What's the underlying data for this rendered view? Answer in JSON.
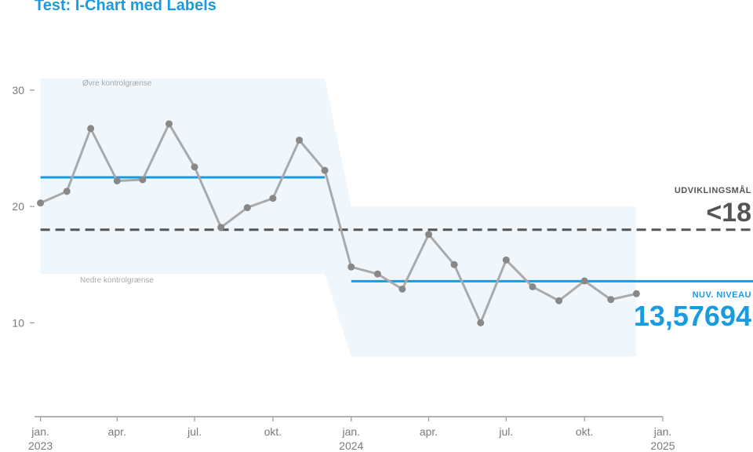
{
  "title": "Test: I-Chart med Labels",
  "colors": {
    "accent": "#1a9be0",
    "line": "#aaaaaa",
    "point": "#888888",
    "band": "#f0f7fc",
    "goal": "#555555",
    "axis": "#999999"
  },
  "annotations": {
    "upper_limit_label": "Øvre kontrolgrænse",
    "lower_limit_label": "Nedre kontrolgrænse",
    "goal_label": "UDVIKLINGSMÅL",
    "goal_value": "<18",
    "level_label": "NUV. NIVEAU",
    "level_value": "13,57694"
  },
  "chart_data": {
    "type": "line",
    "title": "Test: I-Chart med Labels",
    "xlabel": "",
    "ylabel": "",
    "ylim": [
      2,
      31
    ],
    "xlim": [
      "2022-12-25",
      "2025-01-01"
    ],
    "grid": false,
    "x_ticks": [
      {
        "date": "2023-01-01",
        "label": "jan.",
        "year": "2023"
      },
      {
        "date": "2023-04-01",
        "label": "apr.",
        "year": ""
      },
      {
        "date": "2023-07-01",
        "label": "jul.",
        "year": ""
      },
      {
        "date": "2023-10-01",
        "label": "okt.",
        "year": ""
      },
      {
        "date": "2024-01-01",
        "label": "jan.",
        "year": "2024"
      },
      {
        "date": "2024-04-01",
        "label": "apr.",
        "year": ""
      },
      {
        "date": "2024-07-01",
        "label": "jul.",
        "year": ""
      },
      {
        "date": "2024-10-01",
        "label": "okt.",
        "year": ""
      },
      {
        "date": "2025-01-01",
        "label": "jan.",
        "year": "2025"
      }
    ],
    "y_ticks": [
      10,
      20,
      30
    ],
    "series": [
      {
        "x": [
          "2023-01-01",
          "2023-02-01",
          "2023-03-01",
          "2023-04-01",
          "2023-05-01",
          "2023-06-01",
          "2023-07-01",
          "2023-08-01",
          "2023-09-01",
          "2023-10-01",
          "2023-11-01",
          "2023-12-01",
          "2024-01-01",
          "2024-02-01",
          "2024-03-01",
          "2024-04-01",
          "2024-05-01",
          "2024-06-01",
          "2024-07-01",
          "2024-08-01",
          "2024-09-01",
          "2024-10-01",
          "2024-11-01",
          "2024-12-01"
        ],
        "y": [
          20.3,
          21.3,
          26.7,
          22.2,
          22.3,
          27.1,
          23.4,
          18.2,
          19.9,
          20.7,
          25.7,
          23.1,
          14.8,
          14.2,
          12.9,
          17.6,
          15.0,
          10.0,
          15.4,
          13.1,
          11.9,
          13.6,
          12.0,
          12.5
        ]
      }
    ],
    "phases": [
      {
        "start": "2023-01-01",
        "end": "2023-12-01",
        "center": 22.5,
        "upper": 31.0,
        "lower": 14.2,
        "center_end": "2023-12-01"
      },
      {
        "start": "2024-01-01",
        "end": "2024-12-01",
        "center": 13.57694,
        "upper": 20.0,
        "lower": 7.1,
        "center_end": "2025-01-01"
      }
    ],
    "goal": {
      "value": 18
    }
  }
}
